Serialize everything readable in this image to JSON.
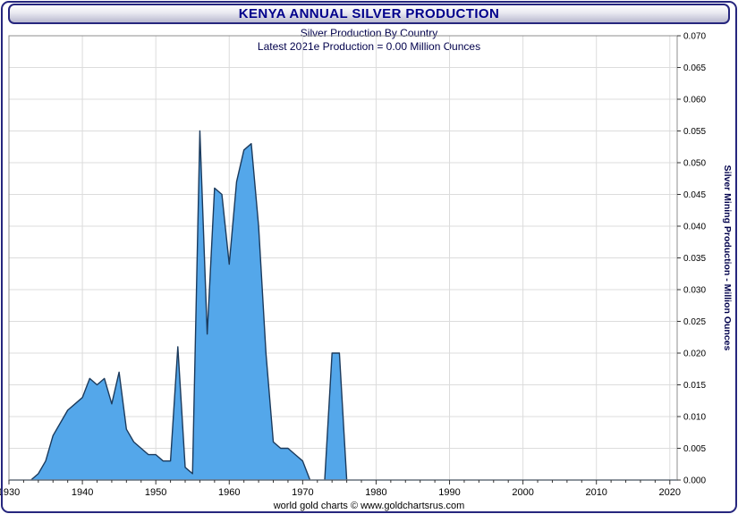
{
  "window": {
    "title": "KENYA ANNUAL SILVER PRODUCTION"
  },
  "chart": {
    "subtitle": "Silver Production By Country",
    "annotation": "Latest 2021e Production = 0.00 Million Ounces",
    "y_axis_title": "Silver Mining Production - Million Ounces",
    "footer": "world gold charts © www.goldchartsrus.com"
  },
  "colors": {
    "title_text": "#00008b",
    "accent_border": "#26267e",
    "area_fill": "#54a7ea",
    "area_stroke": "#1b3a5c",
    "grid": "#dcdcdc",
    "plot_border": "#8c8c8c",
    "tick": "#333333",
    "axis_text": "#000000",
    "subtitle_text": "#00004b"
  },
  "chart_data": {
    "type": "area",
    "title": "KENYA ANNUAL SILVER PRODUCTION",
    "xlabel": "",
    "ylabel": "Silver Mining Production - Million Ounces",
    "xlim": [
      1930,
      2021
    ],
    "ylim": [
      0,
      0.07
    ],
    "x_ticks": [
      1930,
      1940,
      1950,
      1960,
      1970,
      1980,
      1990,
      2000,
      2010,
      2020
    ],
    "y_tick_step": 0.005,
    "x_minor_tick_step": 2,
    "grid": true,
    "x": [
      1930,
      1931,
      1932,
      1933,
      1934,
      1935,
      1936,
      1937,
      1938,
      1939,
      1940,
      1941,
      1942,
      1943,
      1944,
      1945,
      1946,
      1947,
      1948,
      1949,
      1950,
      1951,
      1952,
      1953,
      1954,
      1955,
      1956,
      1957,
      1958,
      1959,
      1960,
      1961,
      1962,
      1963,
      1964,
      1965,
      1966,
      1967,
      1968,
      1969,
      1970,
      1971,
      1972,
      1973,
      1974,
      1975,
      1976,
      1977,
      1978,
      1979,
      1980,
      1981,
      1982,
      1983,
      1984,
      1985,
      1986,
      1987,
      1988,
      1989,
      1990,
      1991,
      1992,
      1993,
      1994,
      1995,
      1996,
      1997,
      1998,
      1999,
      2000,
      2001,
      2002,
      2003,
      2004,
      2005,
      2006,
      2007,
      2008,
      2009,
      2010,
      2011,
      2012,
      2013,
      2014,
      2015,
      2016,
      2017,
      2018,
      2019,
      2020,
      2021
    ],
    "values": [
      0,
      0,
      0,
      0,
      0.001,
      0.003,
      0.007,
      0.009,
      0.011,
      0.012,
      0.013,
      0.016,
      0.015,
      0.016,
      0.012,
      0.017,
      0.008,
      0.006,
      0.005,
      0.004,
      0.004,
      0.003,
      0.003,
      0.021,
      0.002,
      0.001,
      0.055,
      0.023,
      0.046,
      0.045,
      0.034,
      0.047,
      0.052,
      0.053,
      0.04,
      0.02,
      0.006,
      0.005,
      0.005,
      0.004,
      0.003,
      0,
      0,
      0,
      0.02,
      0.02,
      0,
      0,
      0,
      0,
      0,
      0,
      0,
      0,
      0,
      0,
      0,
      0,
      0,
      0,
      0,
      0,
      0,
      0,
      0,
      0,
      0,
      0,
      0,
      0,
      0,
      0,
      0,
      0,
      0,
      0,
      0,
      0,
      0,
      0,
      0,
      0,
      0,
      0,
      0,
      0,
      0,
      0,
      0,
      0,
      0,
      0
    ]
  }
}
